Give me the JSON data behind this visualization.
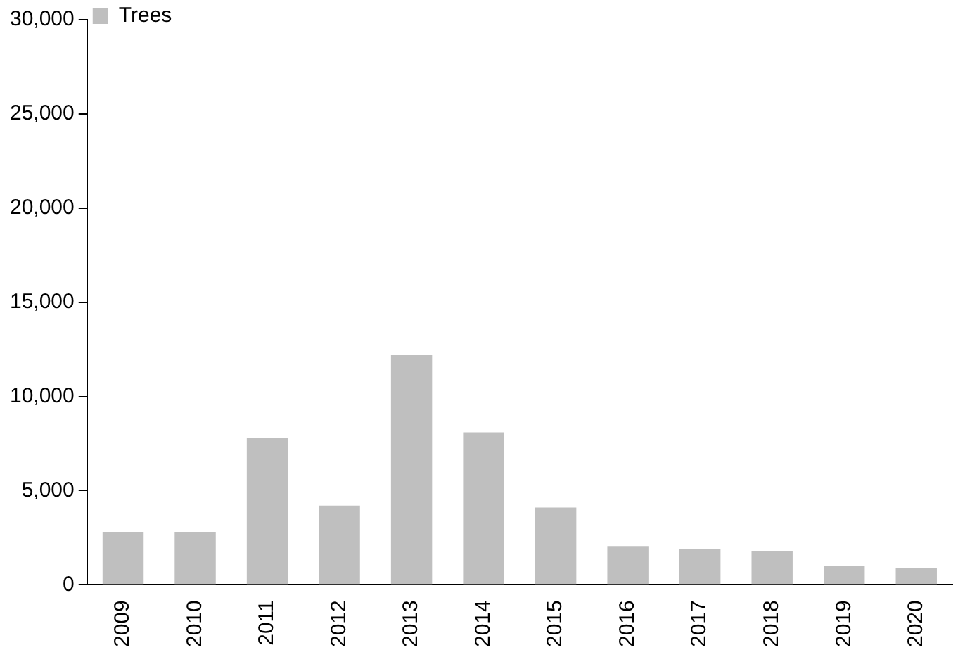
{
  "chart_data": {
    "type": "bar",
    "categories": [
      "2009",
      "2010",
      "2011",
      "2012",
      "2013",
      "2014",
      "2015",
      "2016",
      "2017",
      "2018",
      "2019",
      "2020"
    ],
    "series": [
      {
        "name": "Trees",
        "color": "#bfbfbf",
        "values": [
          2800,
          2800,
          7800,
          4200,
          12200,
          8100,
          4100,
          2050,
          1900,
          1800,
          1000,
          900
        ]
      }
    ],
    "ylim": [
      0,
      30000
    ],
    "yticks": [
      0,
      {
        "value": 5000,
        "label": "5,000"
      },
      {
        "value": 10000,
        "label": "10,000"
      },
      {
        "value": 15000,
        "label": "15,000"
      },
      {
        "value": 20000,
        "label": "20,000"
      },
      {
        "value": 25000,
        "label": "25,000"
      },
      {
        "value": 30000,
        "label": "30,000"
      }
    ],
    "grid": false,
    "legend": "top left"
  }
}
